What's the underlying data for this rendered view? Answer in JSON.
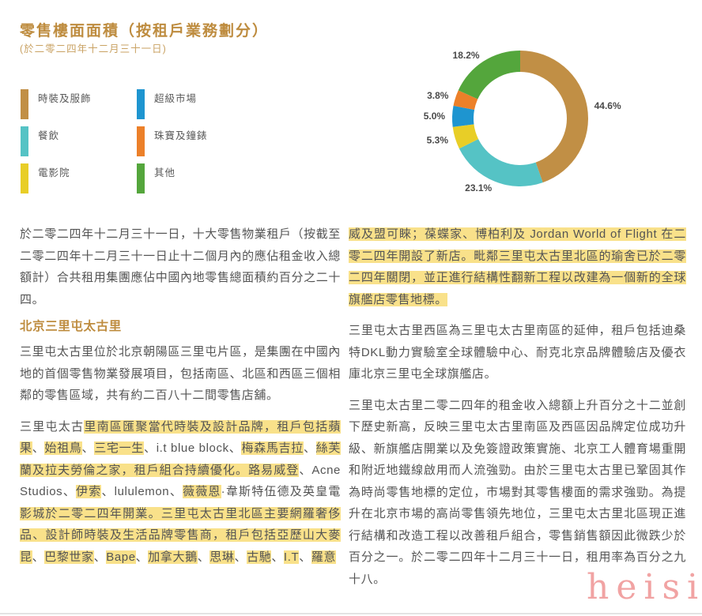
{
  "page": {
    "title": "零售樓面面積（按租戶業務劃分）",
    "subtitle": "(於二零二四年十二月三十一日)",
    "watermark": "heisi"
  },
  "colors": {
    "accent_gold": "#BE8C3F",
    "highlight_yellow": "#F9E18A",
    "body_text": "#545454"
  },
  "legend": {
    "columns": [
      {
        "items": [
          {
            "label": "時裝及服飾",
            "color": "#C18F45"
          },
          {
            "label": "餐飲",
            "color": "#55C3C5"
          },
          {
            "label": "電影院",
            "color": "#E8CE27"
          }
        ]
      },
      {
        "items": [
          {
            "label": "超級市場",
            "color": "#1E95D0"
          },
          {
            "label": "珠寶及鐘錶",
            "color": "#EC8029"
          },
          {
            "label": "其他",
            "color": "#54A63C"
          }
        ]
      }
    ]
  },
  "chart_data": {
    "type": "pie",
    "subtype": "donut",
    "title": "零售樓面面積（按租戶業務劃分）",
    "as_of": "(於二零二四年十二月三十一日)",
    "start_angle": "12-oclock",
    "direction": "clockwise",
    "unit": "%",
    "slices": [
      {
        "label": "時裝及服飾",
        "value": 44.6,
        "color": "#C18F45"
      },
      {
        "label": "餐飲",
        "value": 23.1,
        "color": "#55C3C5"
      },
      {
        "label": "電影院",
        "value": 5.3,
        "color": "#E8CE27"
      },
      {
        "label": "超級市場",
        "value": 5.0,
        "color": "#1E95D0"
      },
      {
        "label": "珠寶及鐘錶",
        "value": 3.8,
        "color": "#EC8029"
      },
      {
        "label": "其他",
        "value": 18.2,
        "color": "#54A63C"
      }
    ]
  },
  "columns": {
    "left": {
      "blocks": [
        {
          "type": "paragraph",
          "segments": [
            {
              "t": "於二零二四年十二月三十一日，十大零售物業租戶（按截至二零二四年十二月三十一日止十二個月內的應佔租金收入總額計）合共租用集團應佔中國內地零售總面積約百分之二十四。",
              "hl": false
            }
          ]
        },
        {
          "type": "heading",
          "text": "北京三里屯太古里"
        },
        {
          "type": "paragraph",
          "segments": [
            {
              "t": "三里屯太古里位於北京朝陽區三里屯片區，是集團在中國內地的首個零售物業發展項目，包括南區、北區和西區三個相鄰的零售區域，共有約二百八十二間零售店舖。",
              "hl": false
            }
          ]
        },
        {
          "type": "paragraph",
          "segments": [
            {
              "t": "三里屯太古",
              "hl": false
            },
            {
              "t": "里南區匯聚當代時裝及設計品牌，租戶包括蘋果",
              "hl": true
            },
            {
              "t": "、",
              "hl": false
            },
            {
              "t": "始祖鳥",
              "hl": true
            },
            {
              "t": "、",
              "hl": false
            },
            {
              "t": "三宅一生",
              "hl": true
            },
            {
              "t": "、i.t blue block、",
              "hl": false
            },
            {
              "t": "梅森馬吉拉",
              "hl": true
            },
            {
              "t": "、",
              "hl": false
            },
            {
              "t": "絲芙蘭及拉夫勞倫之家，租戶組合持續優化。路易威登",
              "hl": true
            },
            {
              "t": "、Acne Studios、",
              "hl": false
            },
            {
              "t": "伊索",
              "hl": true
            },
            {
              "t": "、lululemon、",
              "hl": false
            },
            {
              "t": "薇薇恩",
              "hl": true
            },
            {
              "t": "·韋斯特伍德及英皇電",
              "hl": false
            },
            {
              "t": "影城於二零二四年開業。三里屯太古里北區主要網羅奢侈品、設計師時裝及生活品牌零售商，租戶包括亞歷山大麥昆",
              "hl": true
            },
            {
              "t": "、",
              "hl": false
            },
            {
              "t": "巴黎世家",
              "hl": true
            },
            {
              "t": "、",
              "hl": false
            },
            {
              "t": "Bape",
              "hl": true
            },
            {
              "t": "、",
              "hl": false
            },
            {
              "t": "加拿大鵝",
              "hl": true
            },
            {
              "t": "、",
              "hl": false
            },
            {
              "t": "思琳",
              "hl": true
            },
            {
              "t": "、",
              "hl": false
            },
            {
              "t": "古馳",
              "hl": true
            },
            {
              "t": "、",
              "hl": false
            },
            {
              "t": "I.T",
              "hl": true
            },
            {
              "t": "、",
              "hl": false
            },
            {
              "t": "羅意",
              "hl": true
            }
          ]
        }
      ]
    },
    "right": {
      "blocks": [
        {
          "type": "paragraph",
          "segments": [
            {
              "t": "威及盟可睞；葆蝶家、博柏利及 Jordan World of Flight 在二零二四年開設了新店。毗鄰三里屯太古里北區的瑜舍已於二零二四年關閉，並正進行結構性翻新工程以改建為一個新的全球旗艦店零售地標。",
              "hl": true
            }
          ]
        },
        {
          "type": "paragraph",
          "segments": [
            {
              "t": "三里屯太古里西區為三里屯太古里南區的延伸，租戶包括迪桑特DKL動力實驗室全球體驗中心、耐克北京品牌體驗店及優衣庫北京三里屯全球旗艦店。",
              "hl": false
            }
          ]
        },
        {
          "type": "paragraph",
          "segments": [
            {
              "t": "三里屯太古里二零二四年的租金收入總額上升百分之十二並創下歷史新高，反映三里屯太古里南區及西區因品牌定位成功升級、新旗艦店開業以及免簽證政策實施、北京工人體育場重開和附近地鐵線啟用而人流強勁。由於三里屯太古里已鞏固其作為時尚零售地標的定位，市場對其零售樓面的需求強勁。為提升在北京市場的高尚零售領先地位，三里屯太古里北區現正進行結構和改造工程以改善租戶組合，零售銷售額因此微跌少於百分之一。於二零二四年十二月三十一日，租用率為百分之九十八。",
              "hl": false
            }
          ]
        }
      ]
    }
  }
}
